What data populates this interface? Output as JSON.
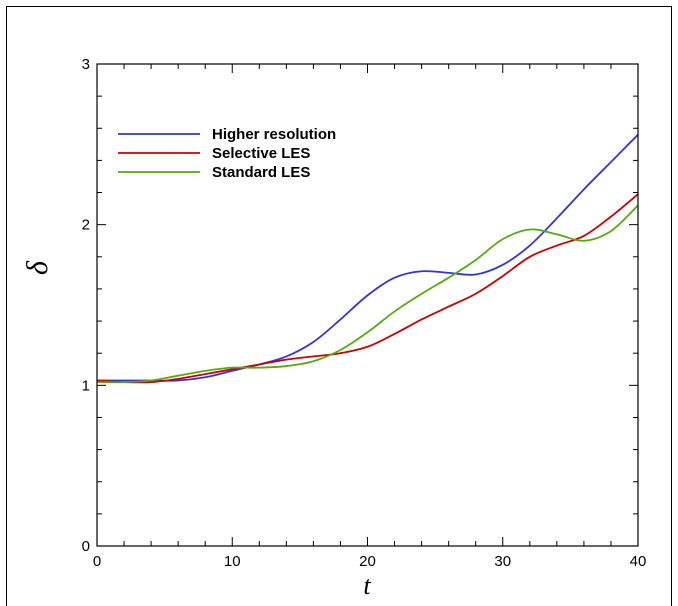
{
  "chart_data": {
    "type": "line",
    "title": "",
    "xlabel": "t",
    "ylabel": "δ",
    "xlim": [
      0,
      40
    ],
    "ylim": [
      0,
      3
    ],
    "xticks": [
      0,
      10,
      20,
      30,
      40
    ],
    "yticks": [
      0,
      1,
      2,
      3
    ],
    "xtick_labels": [
      "0",
      "10",
      "20",
      "30",
      "40"
    ],
    "ytick_labels": [
      "0",
      "1",
      "2",
      "3"
    ],
    "grid": false,
    "legend_position": "top-left",
    "series": [
      {
        "name": "Higher resolution",
        "color": "#3333dd",
        "x": [
          0,
          2,
          4,
          6,
          8,
          10,
          12,
          14,
          16,
          18,
          20,
          22,
          24,
          26,
          28,
          30,
          32,
          34,
          36,
          38,
          40
        ],
        "y": [
          1.03,
          1.03,
          1.03,
          1.03,
          1.05,
          1.09,
          1.13,
          1.18,
          1.27,
          1.41,
          1.56,
          1.67,
          1.71,
          1.7,
          1.69,
          1.75,
          1.87,
          2.04,
          2.22,
          2.39,
          2.56
        ]
      },
      {
        "name": "Selective LES",
        "color": "#cc0000",
        "x": [
          0,
          2,
          4,
          6,
          8,
          10,
          12,
          14,
          16,
          18,
          20,
          22,
          24,
          26,
          28,
          30,
          32,
          34,
          36,
          38,
          40
        ],
        "y": [
          1.03,
          1.02,
          1.02,
          1.04,
          1.07,
          1.1,
          1.13,
          1.16,
          1.18,
          1.2,
          1.24,
          1.32,
          1.41,
          1.49,
          1.57,
          1.68,
          1.8,
          1.87,
          1.93,
          2.05,
          2.19
        ]
      },
      {
        "name": "Standard LES",
        "color": "#55aa11",
        "x": [
          0,
          2,
          4,
          6,
          8,
          10,
          12,
          14,
          16,
          18,
          20,
          22,
          24,
          26,
          28,
          30,
          32,
          34,
          36,
          38,
          40
        ],
        "y": [
          1.02,
          1.02,
          1.03,
          1.06,
          1.09,
          1.11,
          1.11,
          1.12,
          1.15,
          1.22,
          1.33,
          1.46,
          1.57,
          1.67,
          1.78,
          1.91,
          1.97,
          1.94,
          1.9,
          1.96,
          2.12
        ]
      }
    ]
  }
}
